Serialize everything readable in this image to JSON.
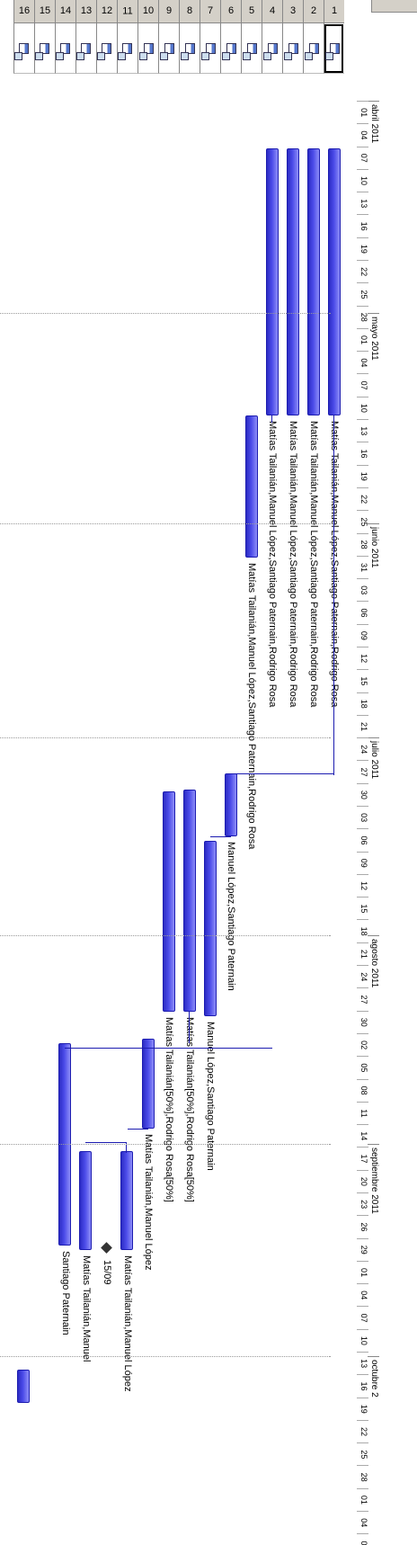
{
  "header": {
    "months": [
      "abril 2011",
      "mayo 2011",
      "junio 2011",
      "julio 2011",
      "agosto 2011",
      "septiembre 2011",
      "octubre 2"
    ],
    "days": [
      "01",
      "04",
      "07",
      "10",
      "13",
      "16",
      "19",
      "22",
      "25",
      "28",
      "01",
      "04",
      "07",
      "10",
      "13",
      "16",
      "19",
      "22",
      "25",
      "28",
      "31",
      "03",
      "06",
      "09",
      "12",
      "15",
      "18",
      "21",
      "24",
      "27",
      "30",
      "03",
      "06",
      "09",
      "12",
      "15",
      "18",
      "21",
      "24",
      "27",
      "30",
      "02",
      "05",
      "08",
      "11",
      "14",
      "17",
      "20",
      "23",
      "26",
      "29",
      "01",
      "04",
      "07",
      "10",
      "13",
      "16",
      "19",
      "22",
      "25",
      "28",
      "01",
      "04",
      "07"
    ]
  },
  "rows": {
    "ids": [
      "1",
      "2",
      "3",
      "4",
      "5",
      "6",
      "7",
      "8",
      "9",
      "10",
      "11",
      "12",
      "13",
      "14",
      "15",
      "16"
    ],
    "info_icon": "info-icon",
    "selected_row": "1"
  },
  "tasks": [
    {
      "label": "Matías Tailanián,Manuel López,Santiago Paternain,Rodrigo Rosa"
    },
    {
      "label": "Matías Tailanián,Manuel López,Santiago Paternain,Rodrigo Rosa"
    },
    {
      "label": "Matías Tailanián,Manuel López,Santiago Paternain,Rodrigo Rosa"
    },
    {
      "label": "Matías Tailanián,Manuel López,Santiago Paternain,Rodrigo Rosa"
    },
    {
      "label": "Matías Tailanián,Manuel López,Santiago Paternain,Rodrigo Rosa"
    },
    {
      "label": "Manuel López,Santiago Paternain"
    },
    {
      "label": "Manuel López,Santiago Paternain"
    },
    {
      "label": "Matías Tailanián[50%],Rodrigo Rosa[50%]"
    },
    {
      "label": "Matías Tailanián[50%],Rodrigo Rosa[50%]"
    },
    {
      "label": "Matías Tailanián,Manuel López"
    },
    {
      "label": "Matías Tailanián,Manuel López"
    },
    {
      "label": "15/09"
    },
    {
      "label": "Matías Tailanián,Manuel"
    },
    {
      "label": "Santiago Paternain"
    },
    {
      "label": ""
    },
    {
      "label": ""
    }
  ],
  "colors": {
    "bar": "#4a4ae8",
    "link": "#1c1cb0"
  }
}
